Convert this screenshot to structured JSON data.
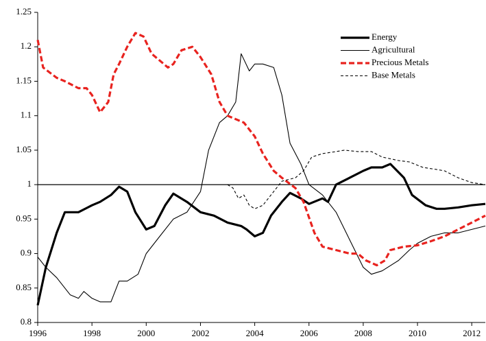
{
  "chart_data": {
    "type": "line",
    "xlim": [
      1996,
      2012.5
    ],
    "xticks": [
      1996,
      1998,
      2000,
      2002,
      2004,
      2006,
      2008,
      2010,
      2012
    ],
    "ylim": [
      0.8,
      1.25
    ],
    "yticks": [
      0.8,
      0.85,
      0.9,
      0.95,
      1,
      1.05,
      1.1,
      1.15,
      1.2,
      1.25
    ],
    "grid": false,
    "legend": "upper right",
    "hline": 1,
    "series": [
      {
        "name": "Energy",
        "color": "#000000",
        "x": [
          1996,
          1996.3,
          1996.7,
          1997,
          1997.5,
          1998,
          1998.3,
          1998.7,
          1999,
          1999.3,
          1999.6,
          2000,
          2000.3,
          2000.7,
          2001,
          2001.5,
          2002,
          2002.5,
          2003,
          2003.5,
          2003.7,
          2004,
          2004.3,
          2004.6,
          2005,
          2005.3,
          2005.7,
          2006,
          2006.5,
          2006.7,
          2007,
          2007.5,
          2008,
          2008.3,
          2008.7,
          2009,
          2009.5,
          2009.8,
          2010.3,
          2010.7,
          2011,
          2011.5,
          2012,
          2012.5
        ],
        "values": [
          0.825,
          0.88,
          0.93,
          0.96,
          0.96,
          0.97,
          0.975,
          0.985,
          0.997,
          0.99,
          0.96,
          0.935,
          0.94,
          0.97,
          0.987,
          0.975,
          0.96,
          0.955,
          0.945,
          0.94,
          0.935,
          0.925,
          0.93,
          0.955,
          0.975,
          0.988,
          0.98,
          0.972,
          0.98,
          0.975,
          1.0,
          1.01,
          1.02,
          1.025,
          1.025,
          1.03,
          1.01,
          0.985,
          0.97,
          0.965,
          0.965,
          0.967,
          0.97,
          0.972
        ]
      },
      {
        "name": "Agricultural",
        "color": "#000000",
        "x": [
          1996,
          1996.3,
          1996.7,
          1997.2,
          1997.5,
          1997.7,
          1998,
          1998.3,
          1998.7,
          1999,
          1999.3,
          1999.7,
          2000,
          2000.5,
          2001,
          2001.5,
          2002,
          2002.3,
          2002.7,
          2003,
          2003.3,
          2003.5,
          2003.8,
          2004,
          2004.3,
          2004.7,
          2005,
          2005.3,
          2005.7,
          2006,
          2006.5,
          2007,
          2007.5,
          2008,
          2008.3,
          2008.7,
          2009.3,
          2009.7,
          2010,
          2010.5,
          2011,
          2011.5,
          2012,
          2012.5
        ],
        "values": [
          0.895,
          0.88,
          0.865,
          0.84,
          0.835,
          0.845,
          0.835,
          0.83,
          0.83,
          0.86,
          0.86,
          0.87,
          0.9,
          0.925,
          0.95,
          0.96,
          0.99,
          1.05,
          1.09,
          1.1,
          1.12,
          1.19,
          1.165,
          1.175,
          1.175,
          1.17,
          1.13,
          1.06,
          1.03,
          1.0,
          0.985,
          0.96,
          0.92,
          0.88,
          0.87,
          0.875,
          0.89,
          0.905,
          0.915,
          0.925,
          0.93,
          0.93,
          0.935,
          0.94
        ]
      },
      {
        "name": "Precious Metals",
        "color": "#e8231f",
        "x": [
          1996,
          1996.2,
          1996.7,
          1997,
          1997.5,
          1997.8,
          1998,
          1998.3,
          1998.6,
          1998.8,
          1999,
          1999.3,
          1999.6,
          1999.9,
          2000.2,
          2000.5,
          2000.8,
          2001,
          2001.3,
          2001.7,
          2002,
          2002.4,
          2002.7,
          2003,
          2003.3,
          2003.6,
          2004,
          2004.3,
          2004.7,
          2005,
          2005.5,
          2005.8,
          2006.2,
          2006.5,
          2007,
          2007.5,
          2007.8,
          2008.1,
          2008.5,
          2008.8,
          2009,
          2009.5,
          2010,
          2010.5,
          2011,
          2011.5,
          2012,
          2012.5
        ],
        "values": [
          1.21,
          1.17,
          1.155,
          1.15,
          1.14,
          1.14,
          1.13,
          1.105,
          1.12,
          1.16,
          1.175,
          1.2,
          1.22,
          1.215,
          1.19,
          1.18,
          1.17,
          1.175,
          1.195,
          1.2,
          1.185,
          1.16,
          1.12,
          1.1,
          1.095,
          1.09,
          1.07,
          1.045,
          1.02,
          1.01,
          0.995,
          0.975,
          0.93,
          0.91,
          0.905,
          0.9,
          0.9,
          0.89,
          0.883,
          0.89,
          0.905,
          0.91,
          0.912,
          0.918,
          0.925,
          0.935,
          0.945,
          0.955
        ]
      },
      {
        "name": "Base Metals",
        "color": "#000000",
        "x": [
          2003,
          2003.2,
          2003.4,
          2003.6,
          2003.8,
          2004,
          2004.3,
          2004.7,
          2005,
          2005.5,
          2005.8,
          2006.1,
          2006.5,
          2007,
          2007.3,
          2007.8,
          2008.3,
          2008.7,
          2009.3,
          2009.7,
          2010.2,
          2010.7,
          2011,
          2011.5,
          2012,
          2012.5
        ],
        "values": [
          1.0,
          0.995,
          0.98,
          0.985,
          0.97,
          0.965,
          0.97,
          0.99,
          1.005,
          1.01,
          1.02,
          1.04,
          1.045,
          1.048,
          1.05,
          1.048,
          1.048,
          1.04,
          1.035,
          1.033,
          1.025,
          1.022,
          1.02,
          1.01,
          1.003,
          1.0
        ]
      }
    ]
  }
}
